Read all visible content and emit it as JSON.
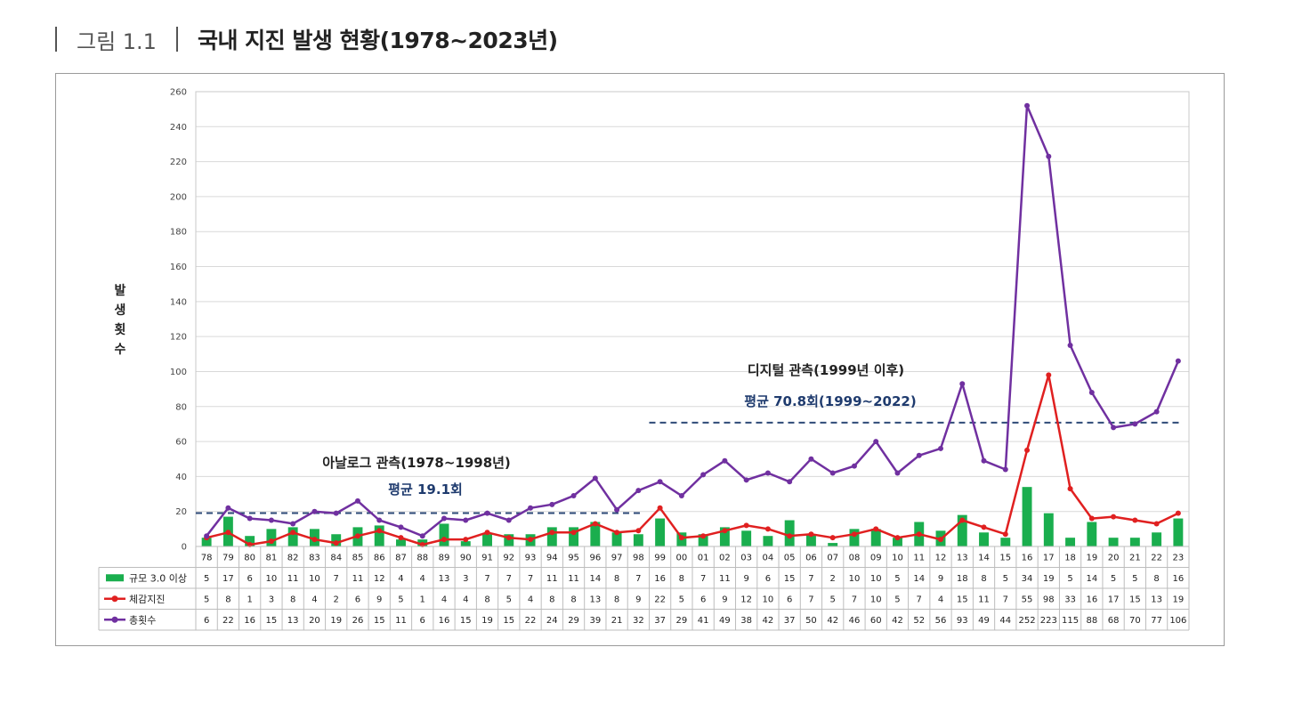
{
  "header": {
    "figure_label": "그림 1.1",
    "title": "국내 지진 발생 현황(1978~2023년)"
  },
  "chart_data": {
    "type": "bar",
    "title": "국내 지진 발생 현황(1978~2023년)",
    "ylabel": "발생횟수",
    "ylim": [
      0,
      260
    ],
    "yticks": [
      0,
      20,
      40,
      60,
      80,
      100,
      120,
      140,
      160,
      180,
      200,
      220,
      240,
      260
    ],
    "grid": true,
    "categories": [
      "78",
      "79",
      "80",
      "81",
      "82",
      "83",
      "84",
      "85",
      "86",
      "87",
      "88",
      "89",
      "90",
      "91",
      "92",
      "93",
      "94",
      "95",
      "96",
      "97",
      "98",
      "99",
      "00",
      "01",
      "02",
      "03",
      "04",
      "05",
      "06",
      "07",
      "08",
      "09",
      "10",
      "11",
      "12",
      "13",
      "14",
      "15",
      "16",
      "17",
      "18",
      "19",
      "20",
      "21",
      "22",
      "23"
    ],
    "series": [
      {
        "name": "규모 3.0 이상",
        "kind": "bar",
        "color": "#1aae4e",
        "values": [
          5,
          17,
          6,
          10,
          11,
          10,
          7,
          11,
          12,
          4,
          4,
          13,
          3,
          7,
          7,
          7,
          11,
          11,
          14,
          8,
          7,
          16,
          8,
          7,
          11,
          9,
          6,
          15,
          7,
          2,
          10,
          10,
          5,
          14,
          9,
          18,
          8,
          5,
          34,
          19,
          5,
          14,
          5,
          5,
          8,
          16
        ]
      },
      {
        "name": "체감지진",
        "kind": "line",
        "color": "#e02020",
        "values": [
          5,
          8,
          1,
          3,
          8,
          4,
          2,
          6,
          9,
          5,
          1,
          4,
          4,
          8,
          5,
          4,
          8,
          8,
          13,
          8,
          9,
          22,
          5,
          6,
          9,
          12,
          10,
          6,
          7,
          5,
          7,
          10,
          5,
          7,
          4,
          15,
          11,
          7,
          55,
          98,
          33,
          16,
          17,
          15,
          13,
          19
        ]
      },
      {
        "name": "총횟수",
        "kind": "line",
        "color": "#7030a0",
        "values": [
          6,
          22,
          16,
          15,
          13,
          20,
          19,
          26,
          15,
          11,
          6,
          16,
          15,
          19,
          15,
          22,
          24,
          29,
          39,
          21,
          32,
          37,
          29,
          41,
          49,
          38,
          42,
          37,
          50,
          42,
          46,
          60,
          42,
          52,
          56,
          93,
          49,
          44,
          252,
          223,
          115,
          88,
          68,
          70,
          77,
          106
        ]
      }
    ],
    "annotations": [
      {
        "title": "아날로그 관측(1978~1998년)",
        "avg_label": "평균 19.1회",
        "avg": 19.1,
        "from": "78",
        "to": "98"
      },
      {
        "title": "디지털 관측(1999년 이후)",
        "avg_label": "평균 70.8회(1999~2022)",
        "avg": 70.8,
        "from": "99",
        "to": "23"
      }
    ]
  }
}
